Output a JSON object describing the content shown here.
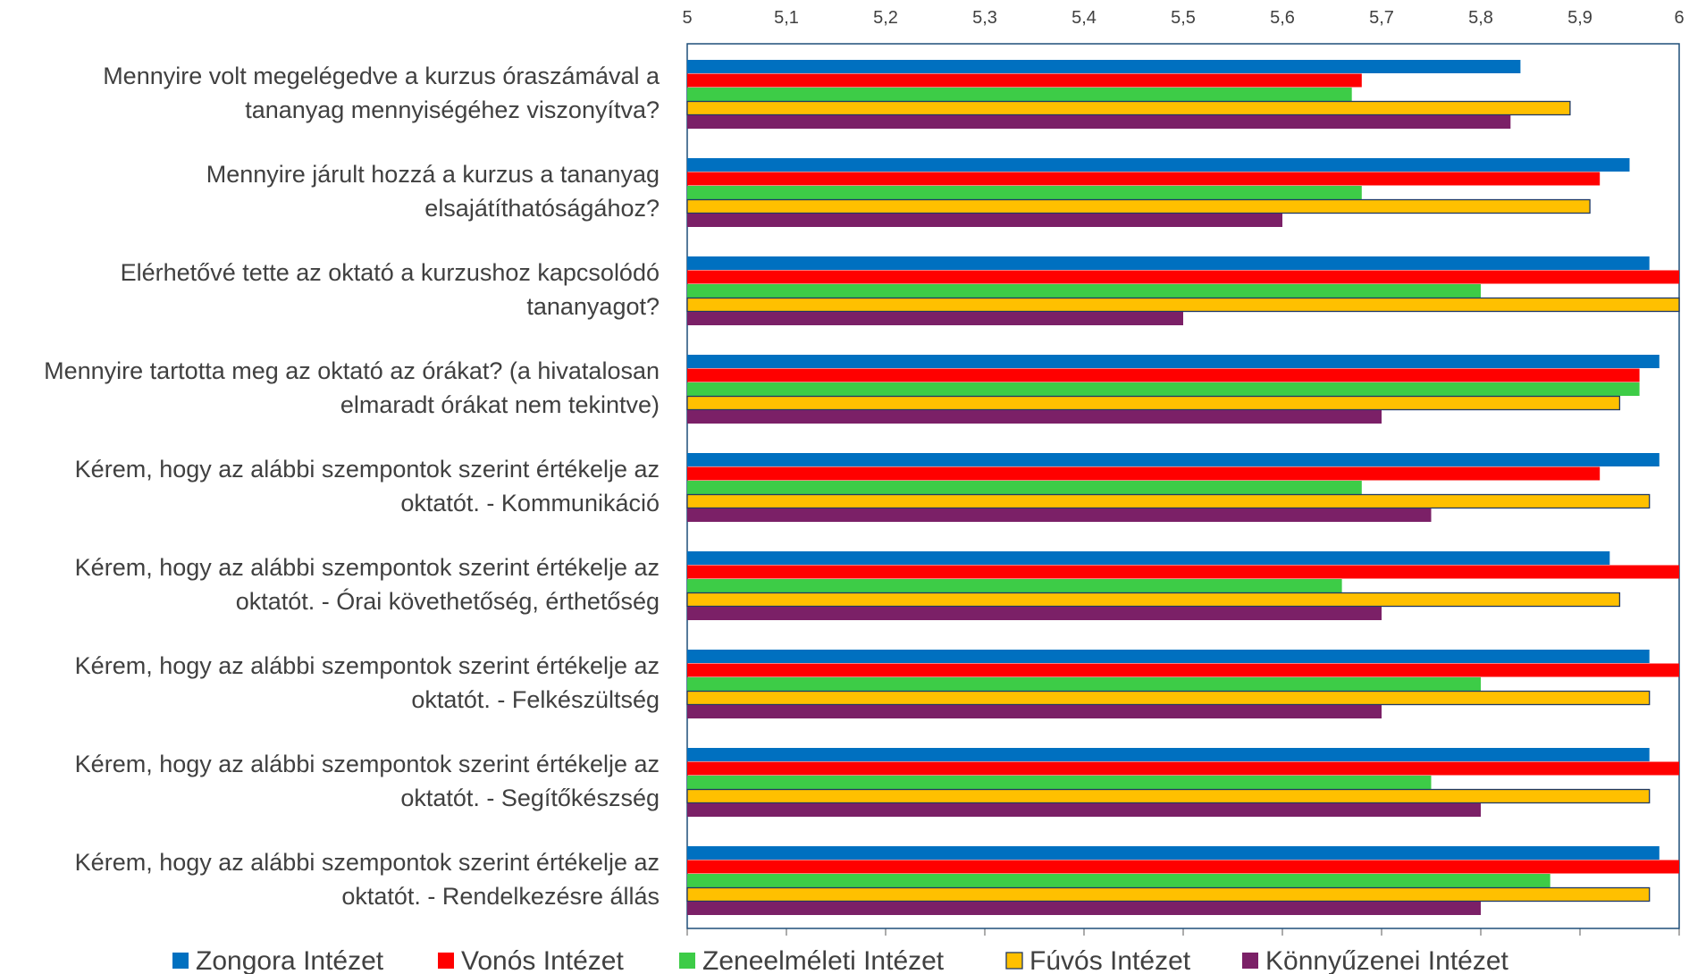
{
  "chart_data": {
    "type": "bar",
    "orientation": "horizontal",
    "title": "",
    "xlabel": "",
    "ylabel": "",
    "xlim": [
      5,
      6
    ],
    "x_ticks": [
      "5",
      "5,1",
      "5,2",
      "5,3",
      "5,4",
      "5,5",
      "5,6",
      "5,7",
      "5,8",
      "5,9",
      "6"
    ],
    "x_axis_position": "top",
    "grid": false,
    "legend_position": "bottom",
    "categories": [
      [
        "Mennyire volt megelégedve a kurzus óraszámával a",
        "tananyag mennyiségéhez viszonyítva?"
      ],
      [
        "Mennyire járult hozzá a kurzus a tananyag",
        "elsajátíthatóságához?"
      ],
      [
        "Elérhetővé tette az oktató a kurzushoz kapcsolódó",
        "tananyagot?"
      ],
      [
        "Mennyire tartotta meg az oktató az órákat? (a hivatalosan",
        "elmaradt órákat nem tekintve)"
      ],
      [
        "Kérem, hogy az alábbi szempontok szerint értékelje az",
        "oktatót. - Kommunikáció"
      ],
      [
        "Kérem, hogy az alábbi szempontok szerint értékelje az",
        "oktatót. - Órai követhetőség, érthetőség"
      ],
      [
        "Kérem, hogy az alábbi szempontok szerint értékelje az",
        "oktatót. - Felkészültség"
      ],
      [
        "Kérem, hogy az alábbi szempontok szerint értékelje az",
        "oktatót. - Segítőkészség"
      ],
      [
        "Kérem, hogy az alábbi szempontok szerint értékelje az",
        "oktatót. - Rendelkezésre állás"
      ]
    ],
    "series": [
      {
        "name": "Zongora Intézet",
        "color": "#0070C0",
        "values": [
          5.84,
          5.95,
          5.97,
          5.98,
          5.98,
          5.93,
          5.97,
          5.97,
          5.98
        ]
      },
      {
        "name": "Vonós Intézet",
        "color": "#FF0000",
        "values": [
          5.68,
          5.92,
          6.0,
          5.96,
          5.92,
          6.0,
          6.0,
          6.0,
          6.0
        ]
      },
      {
        "name": "Zeneelméleti Intézet",
        "color": "#3DCC47",
        "values": [
          5.67,
          5.68,
          5.8,
          5.96,
          5.68,
          5.66,
          5.8,
          5.75,
          5.87
        ]
      },
      {
        "name": "Fúvós Intézet",
        "color": "#FFC000",
        "outline": "#1F3864",
        "values": [
          5.89,
          5.91,
          6.0,
          5.94,
          5.97,
          5.94,
          5.97,
          5.97,
          5.97
        ]
      },
      {
        "name": "Könnyűzenei Intézet",
        "color": "#7B2067",
        "values": [
          5.83,
          5.6,
          5.5,
          5.7,
          5.75,
          5.7,
          5.7,
          5.8,
          5.8
        ]
      }
    ]
  }
}
